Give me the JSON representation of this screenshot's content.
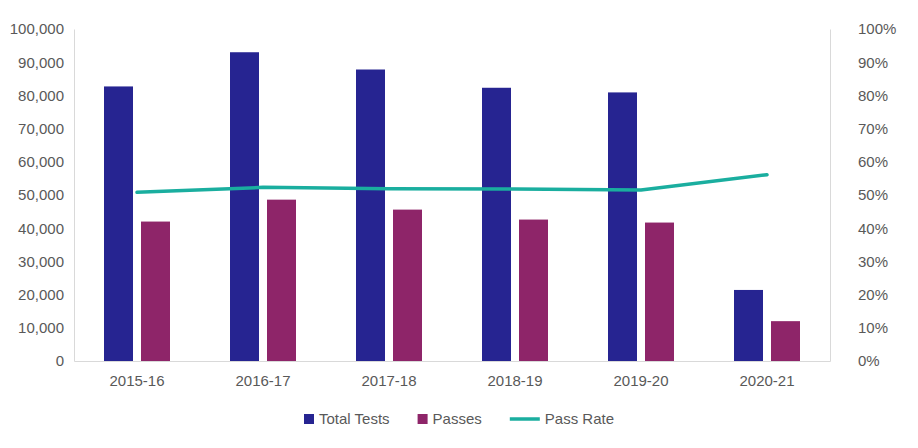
{
  "chart_data": {
    "type": "bar",
    "categories": [
      "2015-16",
      "2016-17",
      "2017-18",
      "2018-19",
      "2019-20",
      "2020-21"
    ],
    "series": [
      {
        "name": "Total Tests",
        "color": "#262491",
        "values": [
          82700,
          93000,
          87800,
          82300,
          80900,
          21400
        ]
      },
      {
        "name": "Passes",
        "color": "#8E2569",
        "values": [
          42000,
          48600,
          45600,
          42600,
          41700,
          12000
        ]
      },
      {
        "name": "Pass Rate",
        "color": "#1AAE9F",
        "type": "line",
        "axis": "y2",
        "values": [
          50.8,
          52.3,
          51.9,
          51.8,
          51.5,
          56.1
        ]
      }
    ],
    "ylim": [
      0,
      100000
    ],
    "yticks": [
      0,
      {
        "value": 10000,
        "label": "10,000"
      },
      {
        "value": 20000,
        "label": "20,000"
      },
      {
        "value": 30000,
        "label": "30,000"
      },
      {
        "value": 40000,
        "label": "40,000"
      },
      {
        "value": 50000,
        "label": "50,000"
      },
      {
        "value": 60000,
        "label": "60,000"
      },
      {
        "value": 70000,
        "label": "70,000"
      },
      {
        "value": 80000,
        "label": "80,000"
      },
      {
        "value": 90000,
        "label": "90,000"
      },
      {
        "value": 100000,
        "label": "100,000"
      }
    ],
    "y2lim": [
      0,
      100
    ],
    "y2ticks": [
      {
        "value": 0,
        "label": "0%"
      },
      {
        "value": 10,
        "label": "10%"
      },
      {
        "value": 20,
        "label": "20%"
      },
      {
        "value": 30,
        "label": "30%"
      },
      {
        "value": 40,
        "label": "40%"
      },
      {
        "value": 50,
        "label": "50%"
      },
      {
        "value": 60,
        "label": "60%"
      },
      {
        "value": 70,
        "label": "70%"
      },
      {
        "value": 80,
        "label": "80%"
      },
      {
        "value": 90,
        "label": "90%"
      },
      {
        "value": 100,
        "label": "100%"
      }
    ],
    "legend": "bottom"
  }
}
